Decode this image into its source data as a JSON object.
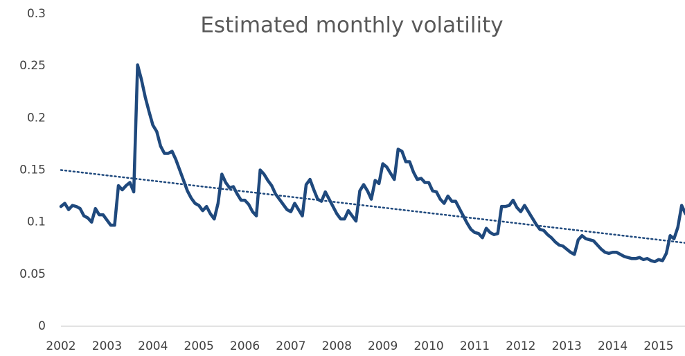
{
  "chart_data": {
    "type": "line",
    "title": "Estimated monthly volatility",
    "categories": [
      "2002",
      null,
      null,
      null,
      null,
      null,
      null,
      null,
      null,
      null,
      null,
      null,
      "2003",
      null,
      null,
      null,
      null,
      null,
      null,
      null,
      null,
      null,
      null,
      null,
      "2004",
      null,
      null,
      null,
      null,
      null,
      null,
      null,
      null,
      null,
      null,
      null,
      "2005",
      null,
      null,
      null,
      null,
      null,
      null,
      null,
      null,
      null,
      null,
      null,
      "2006",
      null,
      null,
      null,
      null,
      null,
      null,
      null,
      null,
      null,
      null,
      null,
      "2007",
      null,
      null,
      null,
      null,
      null,
      null,
      null,
      null,
      null,
      null,
      null,
      "2008",
      null,
      null,
      null,
      null,
      null,
      null,
      null,
      null,
      null,
      null,
      null,
      "2009",
      null,
      null,
      null,
      null,
      null,
      null,
      null,
      null,
      null,
      null,
      null,
      "2010",
      null,
      null,
      null,
      null,
      null,
      null,
      null,
      null,
      null,
      null,
      null,
      "2011",
      null,
      null,
      null,
      null,
      null,
      null,
      null,
      null,
      null,
      null,
      null,
      "2012",
      null,
      null,
      null,
      null,
      null,
      null,
      null,
      null,
      null,
      null,
      null,
      "2013",
      null,
      null,
      null,
      null,
      null,
      null,
      null,
      null,
      null,
      null,
      null,
      "2014",
      null,
      null,
      null,
      null,
      null,
      null,
      null,
      null,
      null,
      null,
      null,
      "2015",
      null,
      null,
      null,
      null,
      null,
      null,
      null
    ],
    "series": [
      {
        "color": "#1f497d",
        "values": [
          0.115,
          0.118,
          0.112,
          0.116,
          0.115,
          0.113,
          0.106,
          0.104,
          0.1,
          0.113,
          0.107,
          0.107,
          0.102,
          0.097,
          0.097,
          0.135,
          0.131,
          0.135,
          0.138,
          0.129,
          0.251,
          0.237,
          0.22,
          0.206,
          0.193,
          0.187,
          0.173,
          0.166,
          0.166,
          0.168,
          0.16,
          0.15,
          0.14,
          0.13,
          0.123,
          0.118,
          0.116,
          0.111,
          0.115,
          0.108,
          0.103,
          0.118,
          0.146,
          0.138,
          0.133,
          0.134,
          0.127,
          0.121,
          0.121,
          0.117,
          0.11,
          0.106,
          0.15,
          0.146,
          0.14,
          0.135,
          0.127,
          0.122,
          0.117,
          0.112,
          0.11,
          0.118,
          0.112,
          0.106,
          0.136,
          0.141,
          0.131,
          0.122,
          0.12,
          0.129,
          0.122,
          0.115,
          0.108,
          0.103,
          0.103,
          0.111,
          0.106,
          0.101,
          0.13,
          0.136,
          0.13,
          0.122,
          0.14,
          0.137,
          0.156,
          0.153,
          0.147,
          0.141,
          0.17,
          0.168,
          0.158,
          0.158,
          0.148,
          0.141,
          0.142,
          0.138,
          0.138,
          0.13,
          0.129,
          0.122,
          0.118,
          0.125,
          0.12,
          0.12,
          0.113,
          0.106,
          0.099,
          0.093,
          0.09,
          0.089,
          0.085,
          0.094,
          0.09,
          0.088,
          0.089,
          0.115,
          0.115,
          0.116,
          0.121,
          0.114,
          0.11,
          0.116,
          0.11,
          0.104,
          0.098,
          0.093,
          0.092,
          0.088,
          0.085,
          0.081,
          0.078,
          0.077,
          0.074,
          0.071,
          0.069,
          0.083,
          0.087,
          0.084,
          0.083,
          0.082,
          0.078,
          0.074,
          0.071,
          0.07,
          0.071,
          0.071,
          0.069,
          0.067,
          0.066,
          0.065,
          0.065,
          0.066,
          0.064,
          0.065,
          0.063,
          0.062,
          0.064,
          0.063,
          0.07,
          0.087,
          0.084,
          0.095,
          0.116,
          0.108
        ]
      }
    ],
    "trendline": {
      "color": "#1f497d",
      "values": [
        0.15,
        0.08
      ]
    },
    "ylim": [
      0,
      0.3
    ],
    "yticks": [
      0,
      0.05,
      0.1,
      0.15,
      0.2,
      0.25,
      0.3
    ],
    "grid": false
  }
}
